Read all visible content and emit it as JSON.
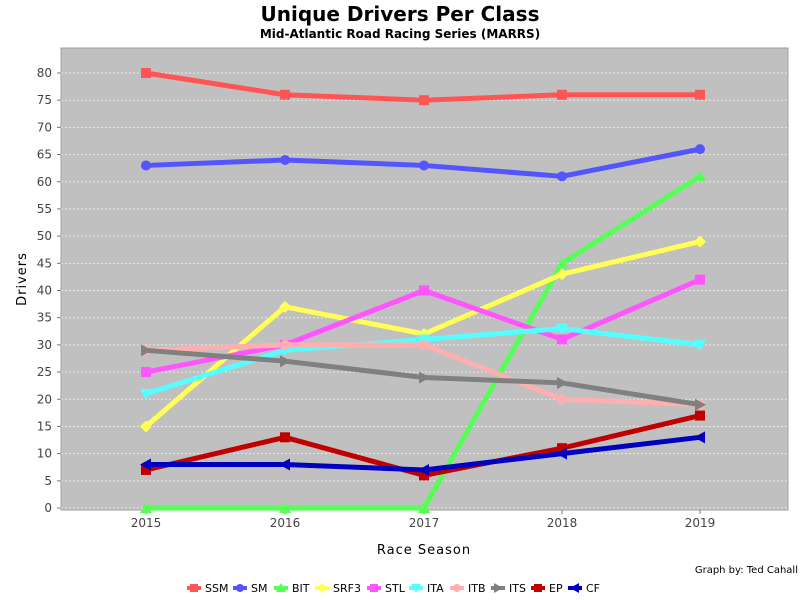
{
  "chart_data": {
    "type": "line",
    "title": "Unique Drivers Per Class",
    "subtitle": "Mid-Atlantic Road Racing Series (MARRS)",
    "xlabel": "Race Season",
    "ylabel": "Drivers",
    "credit": "Graph by: Ted Cahall",
    "categories": [
      "2015",
      "2016",
      "2017",
      "2018",
      "2019"
    ],
    "ylim": [
      0,
      82
    ],
    "yticks": [
      0,
      5,
      10,
      15,
      20,
      25,
      30,
      35,
      40,
      45,
      50,
      55,
      60,
      65,
      70,
      75,
      80
    ],
    "grid": true,
    "legend_position": "bottom",
    "plot_background": "#c0c0c0",
    "series": [
      {
        "name": "SSM",
        "color": "#ff5555",
        "marker": "square",
        "values": [
          80,
          76,
          75,
          76,
          76
        ]
      },
      {
        "name": "SM",
        "color": "#5555ff",
        "marker": "circle",
        "values": [
          63,
          64,
          63,
          61,
          66
        ]
      },
      {
        "name": "BIT",
        "color": "#55ff55",
        "marker": "triangle-up",
        "values": [
          0,
          0,
          0,
          45,
          61
        ]
      },
      {
        "name": "SRF3",
        "color": "#ffff55",
        "marker": "diamond",
        "values": [
          15,
          37,
          32,
          43,
          49
        ]
      },
      {
        "name": "STL",
        "color": "#ff55ff",
        "marker": "square",
        "values": [
          25,
          30,
          40,
          31,
          42
        ]
      },
      {
        "name": "ITA",
        "color": "#55ffff",
        "marker": "triangle-down",
        "values": [
          21,
          29,
          31,
          33,
          30
        ]
      },
      {
        "name": "ITB",
        "color": "#ffafaf",
        "marker": "circle",
        "values": [
          29,
          30,
          30,
          20,
          19
        ]
      },
      {
        "name": "ITS",
        "color": "#808080",
        "marker": "triangle-right",
        "values": [
          29,
          27,
          24,
          23,
          19
        ]
      },
      {
        "name": "EP",
        "color": "#c00000",
        "marker": "square",
        "values": [
          7,
          13,
          6,
          11,
          17
        ]
      },
      {
        "name": "CF",
        "color": "#0000c0",
        "marker": "triangle-left",
        "values": [
          8,
          8,
          7,
          10,
          13
        ]
      }
    ]
  }
}
